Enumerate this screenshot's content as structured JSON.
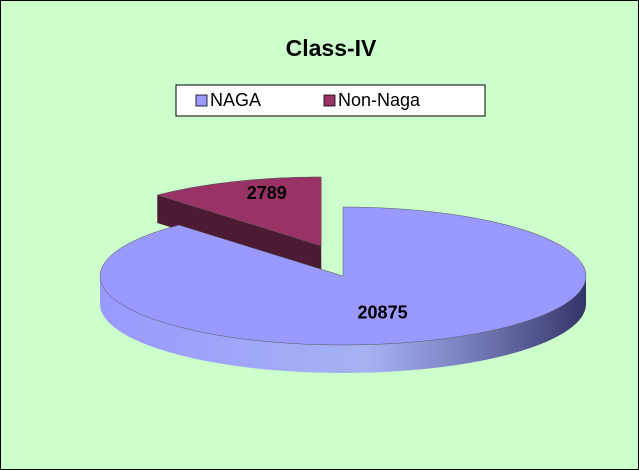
{
  "chart_data": {
    "type": "pie",
    "title": "Class-IV",
    "categories": [
      "NAGA",
      "Non-Naga"
    ],
    "values": [
      20875,
      2789
    ],
    "colors": [
      "#9999ff",
      "#993366"
    ],
    "exploded": [
      false,
      true
    ],
    "legend": "top"
  }
}
